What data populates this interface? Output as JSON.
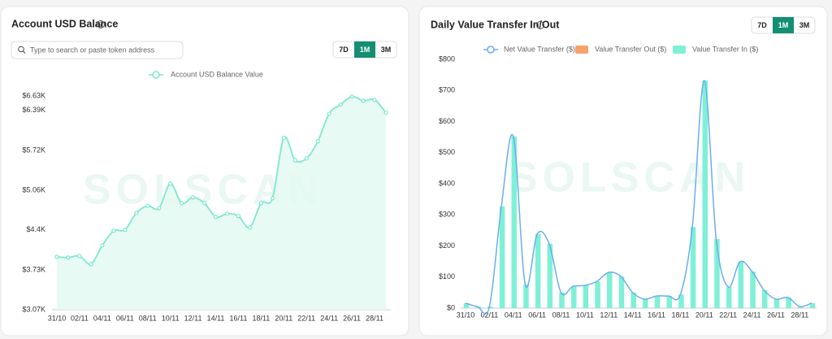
{
  "chart_data": [
    {
      "type": "line",
      "title": "Account USD Balance",
      "categories": [
        "31/10",
        null,
        "02/11",
        null,
        "04/11",
        null,
        "06/11",
        null,
        "08/11",
        null,
        "10/11",
        null,
        "12/11",
        null,
        "14/11",
        null,
        "16/11",
        null,
        "18/11",
        null,
        "20/11",
        null,
        "22/11",
        null,
        "24/11",
        null,
        "26/11",
        null,
        "28/11",
        null
      ],
      "series": [
        {
          "name": "Account USD Balance Value",
          "color": "#7ee8cf",
          "values": [
            3950,
            3940,
            3965,
            3830,
            4140,
            4385,
            4400,
            4680,
            4800,
            4760,
            5170,
            4845,
            4940,
            4845,
            4615,
            4670,
            4630,
            4440,
            4845,
            4925,
            5930,
            5560,
            5590,
            5875,
            6335,
            6485,
            6620,
            6550,
            6565,
            6350
          ]
        }
      ],
      "ylim": [
        3070,
        6630
      ],
      "yticks": [
        {
          "value": 3070,
          "label": "$3.07K"
        },
        {
          "value": 3730,
          "label": "$3.73K"
        },
        {
          "value": 4400,
          "label": "$4.4K"
        },
        {
          "value": 5060,
          "label": "$5.06K"
        },
        {
          "value": 5720,
          "label": "$5.72K"
        },
        {
          "value": 6390,
          "label": "$6.39K"
        },
        {
          "value": 6630,
          "label": "$6.63K"
        }
      ],
      "grid": false
    },
    {
      "type": "bar",
      "title": "Daily Value Transfer In/Out",
      "categories": [
        "31/10",
        null,
        "02/11",
        null,
        "04/11",
        null,
        "06/11",
        null,
        "08/11",
        null,
        "10/11",
        null,
        "12/11",
        null,
        "14/11",
        null,
        "16/11",
        null,
        "18/11",
        null,
        "20/11",
        null,
        "22/11",
        null,
        "24/11",
        null,
        "26/11",
        null,
        "28/11",
        null
      ],
      "series": [
        {
          "name": "Net Value Transfer ($)",
          "type": "line",
          "color": "#6aaef0",
          "values": [
            16,
            5,
            5,
            327,
            552,
            76,
            238,
            207,
            50,
            70,
            73,
            86,
            115,
            102,
            50,
            29,
            39,
            39,
            44,
            261,
            732,
            222,
            68,
            149,
            118,
            58,
            29,
            34,
            5,
            16
          ]
        },
        {
          "name": "Value Transfer Out ($)",
          "type": "bar",
          "color": "#f7a26b",
          "values": [
            0,
            0,
            0,
            0,
            0,
            0,
            0,
            0,
            0,
            0,
            0,
            0,
            0,
            0,
            0,
            0,
            0,
            0,
            0,
            0,
            0,
            0,
            0,
            0,
            0,
            0,
            0,
            0,
            0,
            0
          ]
        },
        {
          "name": "Value Transfer In ($)",
          "type": "bar",
          "color": "#7ff0d6",
          "values": [
            16,
            5,
            5,
            327,
            552,
            76,
            238,
            207,
            50,
            70,
            73,
            86,
            115,
            102,
            50,
            29,
            39,
            39,
            44,
            261,
            732,
            222,
            68,
            149,
            118,
            58,
            29,
            34,
            5,
            16
          ]
        }
      ],
      "ylim": [
        0,
        800
      ],
      "yticks": [
        {
          "value": 0,
          "label": "$0"
        },
        {
          "value": 100,
          "label": "$100"
        },
        {
          "value": 200,
          "label": "$200"
        },
        {
          "value": 300,
          "label": "$300"
        },
        {
          "value": 400,
          "label": "$400"
        },
        {
          "value": 500,
          "label": "$500"
        },
        {
          "value": 600,
          "label": "$600"
        },
        {
          "value": 700,
          "label": "$700"
        },
        {
          "value": 800,
          "label": "$800"
        }
      ],
      "grid": false
    }
  ],
  "ui": {
    "search_placeholder": "Type to search or paste token address",
    "range_buttons": [
      "7D",
      "1M",
      "3M"
    ],
    "active_range": "1M",
    "watermark": "SOLSCAN"
  }
}
